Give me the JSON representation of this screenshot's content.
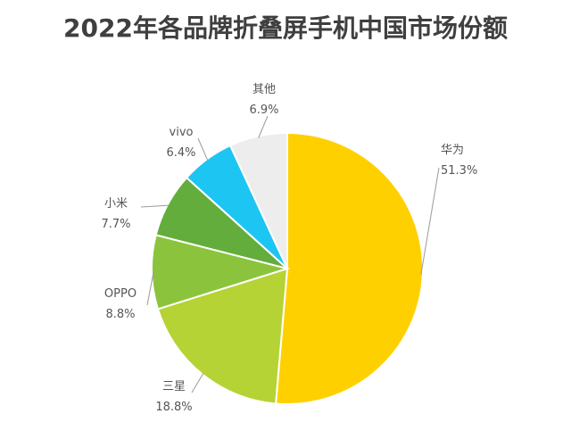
{
  "chart_data": {
    "type": "pie",
    "title": "2022年各品牌折叠屏手机中国市场份额",
    "slices": [
      {
        "label": "华为",
        "value_text": "51.3%",
        "value": 51.3,
        "color": "#FFD000"
      },
      {
        "label": "三星",
        "value_text": "18.8%",
        "value": 18.8,
        "color": "#B5D334"
      },
      {
        "label": "OPPO",
        "value_text": "8.8%",
        "value": 8.8,
        "color": "#8BC43C"
      },
      {
        "label": "小米",
        "value_text": "7.7%",
        "value": 7.7,
        "color": "#63AD3D"
      },
      {
        "label": "vivo",
        "value_text": "6.4%",
        "value": 6.4,
        "color": "#1DC5F2"
      },
      {
        "label": "其他",
        "value_text": "6.9%",
        "value": 6.9,
        "color": "#EDEDED"
      }
    ]
  }
}
